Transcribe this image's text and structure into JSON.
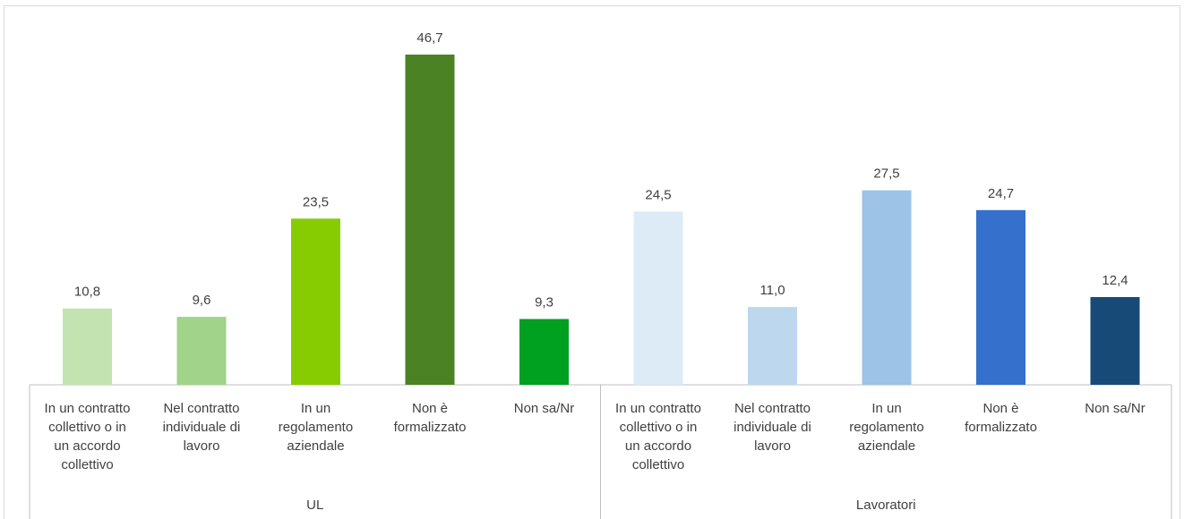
{
  "chart_data": {
    "type": "bar",
    "title": "",
    "xlabel": "",
    "ylabel": "",
    "ylim": [
      0,
      50
    ],
    "grid": false,
    "legend": "none",
    "groups": [
      {
        "name": "UL",
        "categories": [
          [
            "In un contratto",
            "collettivo o in",
            "un accordo",
            "collettivo"
          ],
          [
            "Nel contratto",
            "individuale di",
            "lavoro"
          ],
          [
            "In un",
            "regolamento",
            "aziendale"
          ],
          [
            "Non è",
            "formalizzato"
          ],
          [
            "Non sa/Nr"
          ]
        ],
        "values": [
          10.8,
          9.6,
          23.5,
          46.7,
          9.3
        ],
        "value_labels": [
          "10,8",
          "9,6",
          "23,5",
          "46,7",
          "9,3"
        ],
        "colors": [
          "#c3e3b0",
          "#a1d38a",
          "#86cc00",
          "#4b8224",
          "#00a020"
        ]
      },
      {
        "name": "Lavoratori",
        "categories": [
          [
            "In un contratto",
            "collettivo o in",
            "un accordo",
            "collettivo"
          ],
          [
            "Nel contratto",
            "individuale di",
            "lavoro"
          ],
          [
            "In un",
            "regolamento",
            "aziendale"
          ],
          [
            "Non è",
            "formalizzato"
          ],
          [
            "Non sa/Nr"
          ]
        ],
        "values": [
          24.5,
          11.0,
          27.5,
          24.7,
          12.4
        ],
        "value_labels": [
          "24,5",
          "11,0",
          "27,5",
          "24,7",
          "12,4"
        ],
        "colors": [
          "#ddebf7",
          "#bdd7ee",
          "#9dc3e6",
          "#3470cc",
          "#184a78"
        ]
      }
    ]
  }
}
